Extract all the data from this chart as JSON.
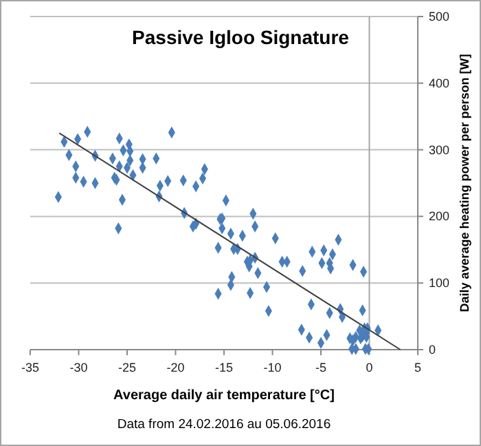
{
  "chart_data": {
    "type": "scatter",
    "title": "Passive Igloo Signature",
    "xlabel": "Average daily air temperature [°C]",
    "ylabel": "Daily average heating power per person [W]",
    "annotations": [
      "Data from 24.02.2016  au 05.06.2016"
    ],
    "xlim": [
      -35,
      5
    ],
    "xticks": [
      -35,
      -30,
      -25,
      -20,
      -15,
      -10,
      -5,
      0,
      5
    ],
    "ylim": [
      0,
      500
    ],
    "yticks": [
      0,
      100,
      200,
      300,
      400,
      500
    ],
    "grid": "y",
    "marker": "diamond",
    "ref_lines": [
      {
        "axis": "x",
        "value": 0,
        "color": "#a6a6a6"
      }
    ],
    "series": [
      {
        "color": "#4a7ebb",
        "x": [
          -32.1,
          -31.5,
          -31.0,
          -30.3,
          -30.3,
          -30.1,
          -29.5,
          -29.1,
          -28.3,
          -28.3,
          -26.5,
          -26.3,
          -26.1,
          -25.8,
          -25.8,
          -25.5,
          -25.9,
          -25.4,
          -25.0,
          -24.8,
          -24.7,
          -24.7,
          -24.4,
          -23.4,
          -23.4,
          -22.0,
          -21.7,
          -21.6,
          -20.8,
          -20.4,
          -19.2,
          -19.1,
          -17.9,
          -17.2,
          -17.0,
          -18.2,
          -17.9,
          -14.8,
          -15.2,
          -15.2,
          -15.6,
          -15.6,
          -14.3,
          -14.0,
          -13.6,
          -14.2,
          -14.3,
          -15.4,
          -13.1,
          -12.0,
          -11.8,
          -12.6,
          -12.4,
          -12.3,
          -11.8,
          -11.5,
          -12.3,
          -10.6,
          -10.4,
          -9.7,
          -9.0,
          -8.5,
          -6.9,
          -7.0,
          -6.2,
          -6.0,
          -5.9,
          -5.0,
          -4.9,
          -4.7,
          -4.4,
          -4.1,
          -4.1,
          -4.0,
          -3.8,
          -3.2,
          -3.0,
          -2.8,
          -1.7,
          -0.6,
          -0.7,
          -2.0,
          -1.7,
          -1.4,
          -1.0,
          -0.9,
          -0.7,
          -0.5,
          -0.3,
          -0.2,
          -0.3,
          -1.8,
          -1.4,
          -0.4,
          -0.1,
          0.9
        ],
        "values": [
          229,
          312,
          292,
          275,
          258,
          316,
          252,
          327,
          291,
          250,
          287,
          258,
          255,
          317,
          275,
          225,
          182,
          299,
          273,
          308,
          298,
          284,
          262,
          286,
          273,
          287,
          230,
          246,
          253,
          326,
          254,
          205,
          245,
          257,
          271,
          185,
          189,
          224,
          197,
          182,
          153,
          84,
          174,
          151,
          151,
          109,
          97,
          196,
          171,
          204,
          185,
          132,
          125,
          134,
          138,
          115,
          85,
          94,
          58,
          167,
          132,
          132,
          118,
          30,
          18,
          68,
          147,
          10,
          130,
          149,
          22,
          55,
          130,
          122,
          143,
          165,
          61,
          49,
          127,
          117,
          59,
          17,
          14,
          19,
          29,
          17,
          20,
          32,
          25,
          32,
          19,
          1,
          1,
          1,
          1,
          29
        ]
      },
      {
        "type": "line",
        "color": "#404040",
        "marker": "none",
        "x": [
          -32,
          3.2
        ],
        "values": [
          325,
          0
        ]
      }
    ]
  }
}
